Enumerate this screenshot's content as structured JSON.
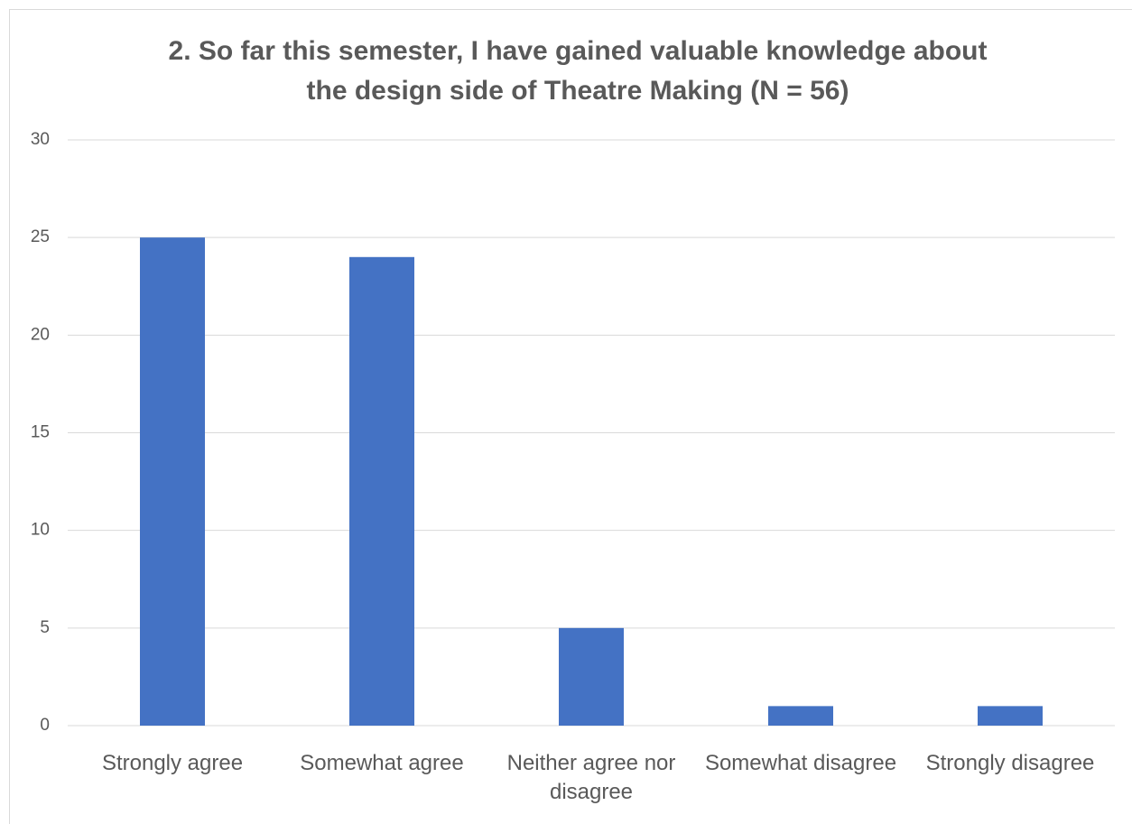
{
  "chart_data": {
    "type": "bar",
    "title": [
      "2. So far this semester, I have gained valuable knowledge about",
      "the design side of Theatre Making (N = 56)"
    ],
    "categories": [
      "Strongly agree",
      "Somewhat agree",
      "Neither agree nor disagree",
      "Somewhat disagree",
      "Strongly disagree"
    ],
    "values": [
      25,
      24,
      5,
      1,
      1
    ],
    "color": "#4472c4",
    "ylim": [
      0,
      30
    ],
    "yticks": [
      0,
      5,
      10,
      15,
      20,
      25,
      30
    ],
    "grid": true
  }
}
